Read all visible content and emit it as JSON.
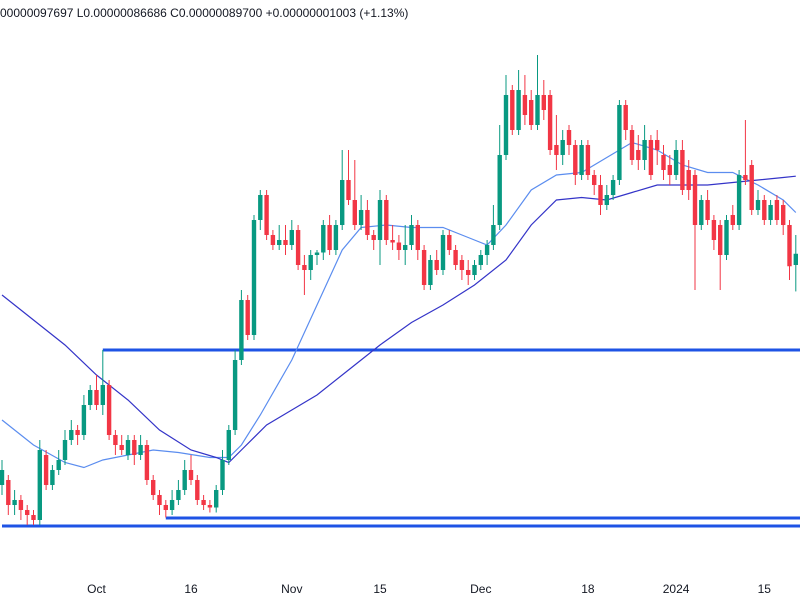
{
  "chart_data": {
    "type": "candlestick",
    "header": "00000097697 L0.00000086686 C0.00000089700 +0.00000001003 (+1.13%)",
    "up_color": "#089981",
    "down_color": "#f23645",
    "ylim": [
      6.44e-07,
      1.1e-06
    ],
    "categories": [
      null,
      null,
      null,
      null,
      null,
      null,
      null,
      null,
      null,
      null,
      null,
      null,
      null,
      null,
      null,
      "Oct",
      null,
      null,
      null,
      null,
      null,
      null,
      null,
      null,
      null,
      null,
      null,
      null,
      null,
      null,
      "16",
      null,
      null,
      null,
      null,
      null,
      null,
      null,
      null,
      null,
      null,
      null,
      null,
      null,
      null,
      null,
      "Nov",
      null,
      null,
      null,
      null,
      null,
      null,
      null,
      null,
      null,
      null,
      null,
      null,
      null,
      "15",
      null,
      null,
      null,
      null,
      null,
      null,
      null,
      null,
      null,
      null,
      null,
      null,
      null,
      null,
      null,
      "Dec",
      null,
      null,
      null,
      null,
      null,
      null,
      null,
      null,
      null,
      null,
      null,
      null,
      null,
      null,
      null,
      null,
      "18",
      null,
      null,
      null,
      null,
      null,
      null,
      null,
      null,
      null,
      null,
      null,
      null,
      null,
      "2024",
      null,
      null,
      null,
      null,
      null,
      null,
      null,
      null,
      null,
      null,
      null,
      null,
      null,
      "15",
      null,
      null,
      null,
      null,
      null
    ],
    "open": [
      7.12e-07,
      7.16e-07,
      6.96e-07,
      7e-07,
      6.92e-07,
      6.88e-07,
      6.84e-07,
      7.36e-07,
      7.12e-07,
      7.24e-07,
      7.32e-07,
      7.48e-07,
      7.56e-07,
      7.52e-07,
      7.76e-07,
      7.88e-07,
      7.76e-07,
      7.92e-07,
      7.52e-07,
      7.44e-07,
      7.36e-07,
      7.48e-07,
      7.36e-07,
      7.44e-07,
      7.16e-07,
      7.04e-07,
      6.96e-07,
      6.92e-07,
      7e-07,
      7.08e-07,
      7.24e-07,
      7.16e-07,
      7e-07,
      6.96e-07,
      6.94e-07,
      7.08e-07,
      7.32e-07,
      7.56e-07,
      8.12e-07,
      8.6e-07,
      8.32e-07,
      9.24e-07,
      9.44e-07,
      9.12e-07,
      9.04e-07,
      9.08e-07,
      9.04e-07,
      9.16e-07,
      8.88e-07,
      8.84e-07,
      8.96e-07,
      8.98e-07,
      9.2e-07,
      9e-07,
      9.2e-07,
      9.56e-07,
      9.4e-07,
      9.2e-07,
      9.32e-07,
      9.12e-07,
      9.08e-07,
      9.4e-07,
      9.08e-07,
      9.06e-07,
      9e-07,
      9.04e-07,
      9.2e-07,
      9e-07,
      8.72e-07,
      8.92e-07,
      8.84e-07,
      9.12e-07,
      9e-07,
      8.92e-07,
      8.84e-07,
      8.8e-07,
      8.88e-07,
      8.96e-07,
      9.04e-07,
      9.2e-07,
      9.76e-07,
      1.028e-06,
      9.96e-07,
      1.024e-06,
      1.02e-06,
      1e-06,
      1.024e-06,
      1.024e-06,
      9.84e-07,
      9.76e-07,
      9.96e-07,
      9.84e-07,
      9.6e-07,
      9.84e-07,
      9.6e-07,
      9.52e-07,
      9.36e-07,
      9.44e-07,
      9.56e-07,
      1.016e-06,
      9.96e-07,
      9.8e-07,
      9.72e-07,
      9.88e-07,
      9.88e-07,
      9.76e-07,
      9.68e-07,
      9.6e-07,
      9.8e-07,
      9.64e-07,
      9.6e-07,
      9.2e-07,
      9.4e-07,
      9.24e-07,
      9.2e-07,
      8.96e-07,
      9.28e-07,
      9.2e-07,
      9.6e-07,
      9.68e-07,
      9.32e-07,
      9.4e-07,
      9.24e-07,
      9.4e-07,
      9.36e-07,
      9.2e-07,
      8.88e-07
    ],
    "high": [
      7.32e-07,
      7.2e-07,
      7.08e-07,
      7.04e-07,
      6.96e-07,
      6.92e-07,
      7.48e-07,
      7.4e-07,
      7.28e-07,
      7.4e-07,
      7.56e-07,
      7.64e-07,
      7.6e-07,
      7.84e-07,
      7.92e-07,
      8e-07,
      8.2e-07,
      7.96e-07,
      7.56e-07,
      7.52e-07,
      7.52e-07,
      7.52e-07,
      7.52e-07,
      7.48e-07,
      7.2e-07,
      7.08e-07,
      7e-07,
      7.08e-07,
      7.16e-07,
      7.32e-07,
      7.36e-07,
      7.2e-07,
      7.04e-07,
      7e-07,
      7.12e-07,
      7.4e-07,
      7.6e-07,
      8.2e-07,
      8.68e-07,
      8.64e-07,
      9.28e-07,
      9.48e-07,
      9.48e-07,
      9.16e-07,
      9.2e-07,
      9.2e-07,
      9.24e-07,
      9.2e-07,
      8.96e-07,
      9e-07,
      9e-07,
      9.24e-07,
      9.28e-07,
      9.24e-07,
      9.8e-07,
      9.8e-07,
      9.72e-07,
      9.44e-07,
      9.4e-07,
      9.16e-07,
      9.48e-07,
      9.44e-07,
      9.2e-07,
      9.12e-07,
      9.2e-07,
      9.28e-07,
      9.24e-07,
      9.04e-07,
      8.96e-07,
      9e-07,
      9.16e-07,
      9.16e-07,
      9.04e-07,
      8.96e-07,
      8.92e-07,
      8.92e-07,
      9e-07,
      9.08e-07,
      9.36e-07,
      1e-06,
      1.04e-06,
      1.032e-06,
      1.044e-06,
      1.04e-06,
      1.028e-06,
      1.056e-06,
      1.036e-06,
      1.028e-06,
      1.008e-06,
      9.96e-07,
      1e-06,
      9.88e-07,
      9.88e-07,
      9.88e-07,
      9.64e-07,
      9.6e-07,
      9.52e-07,
      9.6e-07,
      1.02e-06,
      1.02e-06,
      1e-06,
      9.92e-07,
      1e-06,
      9.92e-07,
      9.96e-07,
      9.84e-07,
      9.76e-07,
      9.88e-07,
      9.88e-07,
      9.72e-07,
      9.64e-07,
      9.44e-07,
      9.48e-07,
      9.28e-07,
      9.24e-07,
      9.28e-07,
      9.36e-07,
      9.64e-07,
      1.004e-06,
      9.72e-07,
      9.48e-07,
      9.44e-07,
      9.4e-07,
      9.44e-07,
      9.4e-07,
      9.24e-07,
      9.12e-07
    ],
    "low": [
      7.04e-07,
      6.88e-07,
      6.88e-07,
      6.84e-07,
      6.8e-07,
      6.8e-07,
      6.8e-07,
      7.08e-07,
      7.08e-07,
      7.2e-07,
      7.28e-07,
      7.44e-07,
      7.44e-07,
      7.48e-07,
      7.72e-07,
      7.72e-07,
      7.68e-07,
      7.48e-07,
      7.36e-07,
      7.36e-07,
      7.32e-07,
      7.28e-07,
      7.32e-07,
      7.12e-07,
      7e-07,
      6.88e-07,
      6.86e-07,
      6.88e-07,
      6.96e-07,
      7.04e-07,
      7.12e-07,
      6.96e-07,
      6.92e-07,
      6.9e-07,
      6.9e-07,
      7.04e-07,
      7.28e-07,
      7.52e-07,
      8.08e-07,
      8.28e-07,
      8.28e-07,
      9.16e-07,
      9.08e-07,
      9e-07,
      9e-07,
      8.96e-07,
      9e-07,
      8.84e-07,
      8.64e-07,
      8.76e-07,
      8.88e-07,
      8.92e-07,
      8.96e-07,
      8.96e-07,
      9.16e-07,
      9.36e-07,
      9.16e-07,
      9.16e-07,
      9.08e-07,
      9e-07,
      8.88e-07,
      9.04e-07,
      9e-07,
      8.92e-07,
      8.88e-07,
      9e-07,
      8.92e-07,
      8.68e-07,
      8.68e-07,
      8.8e-07,
      8.8e-07,
      8.96e-07,
      8.84e-07,
      8.76e-07,
      8.72e-07,
      8.76e-07,
      8.84e-07,
      8.88e-07,
      9e-07,
      9.16e-07,
      9.72e-07,
      9.92e-07,
      9.92e-07,
      1e-06,
      9.96e-07,
      9.96e-07,
      1.004e-06,
      9.76e-07,
      9.64e-07,
      9.68e-07,
      9.76e-07,
      9.52e-07,
      9.56e-07,
      9.56e-07,
      9.44e-07,
      9.28e-07,
      9.32e-07,
      9.4e-07,
      9.52e-07,
      9.88e-07,
      9.68e-07,
      9.64e-07,
      9.64e-07,
      9.56e-07,
      9.68e-07,
      9.56e-07,
      9.52e-07,
      9.56e-07,
      9.44e-07,
      9.4e-07,
      8.68e-07,
      9.16e-07,
      9.2e-07,
      9e-07,
      8.68e-07,
      8.92e-07,
      9.16e-07,
      9.16e-07,
      9.52e-07,
      9.28e-07,
      9.28e-07,
      9.2e-07,
      9.2e-07,
      9.2e-07,
      9.12e-07,
      8.76e-07,
      8.6686e-07
    ],
    "close": [
      7.24e-07,
      6.96e-07,
      7e-07,
      6.92e-07,
      6.88e-07,
      6.84e-07,
      7.4e-07,
      7.12e-07,
      7.24e-07,
      7.32e-07,
      7.48e-07,
      7.56e-07,
      7.52e-07,
      7.76e-07,
      7.88e-07,
      7.76e-07,
      7.92e-07,
      7.52e-07,
      7.44e-07,
      7.4e-07,
      7.48e-07,
      7.36e-07,
      7.44e-07,
      7.16e-07,
      7.04e-07,
      6.96e-07,
      6.92e-07,
      7e-07,
      7.08e-07,
      7.24e-07,
      7.16e-07,
      7e-07,
      6.96e-07,
      6.94e-07,
      7.08e-07,
      7.32e-07,
      7.56e-07,
      8.12e-07,
      8.6e-07,
      8.32e-07,
      9.24e-07,
      9.44e-07,
      9.12e-07,
      9.04e-07,
      9.08e-07,
      9.04e-07,
      9.16e-07,
      8.88e-07,
      8.84e-07,
      8.96e-07,
      8.98e-07,
      9.2e-07,
      9e-07,
      9.2e-07,
      9.56e-07,
      9.4e-07,
      9.2e-07,
      9.32e-07,
      9.12e-07,
      9.08e-07,
      9.4e-07,
      9.08e-07,
      9.06e-07,
      9e-07,
      9.04e-07,
      9.2e-07,
      9e-07,
      8.72e-07,
      8.92e-07,
      8.84e-07,
      9.12e-07,
      9e-07,
      8.88e-07,
      8.84e-07,
      8.8e-07,
      8.88e-07,
      8.96e-07,
      9.04e-07,
      9.2e-07,
      9.76e-07,
      1.024e-06,
      9.96e-07,
      1.028e-06,
      1.008e-06,
      1e-06,
      1.024e-06,
      1.012e-06,
      9.8e-07,
      9.76e-07,
      9.88e-07,
      9.84e-07,
      9.6e-07,
      9.84e-07,
      9.6e-07,
      9.52e-07,
      9.36e-07,
      9.44e-07,
      9.56e-07,
      1.016e-06,
      9.96e-07,
      9.72e-07,
      9.72e-07,
      9.88e-07,
      9.6e-07,
      9.8e-07,
      9.64e-07,
      9.6e-07,
      9.8e-07,
      9.48e-07,
      9.48e-07,
      9.2e-07,
      9.4e-07,
      9.24e-07,
      9.08e-07,
      8.96e-07,
      9.24e-07,
      9.2e-07,
      9.6e-07,
      9.56e-07,
      9.32e-07,
      9.4e-07,
      9.24e-07,
      9.36e-07,
      9.24e-07,
      9.2e-07,
      8.87e-07,
      8.97e-07
    ],
    "lines": [
      {
        "color": "#5b8def",
        "x": [
          0,
          5,
          10,
          13,
          16,
          20,
          24,
          28,
          33,
          36,
          38,
          41,
          46,
          50,
          54,
          57,
          61,
          65,
          70,
          74,
          77,
          80,
          84,
          88,
          92,
          96,
          100,
          104,
          108,
          112,
          116,
          120,
          124,
          126
        ],
        "values": [
          7.64e-07,
          7.44e-07,
          7.3e-07,
          7.26e-07,
          7.32e-07,
          7.36e-07,
          7.4e-07,
          7.38e-07,
          7.34e-07,
          7.34e-07,
          7.44e-07,
          7.68e-07,
          8.12e-07,
          8.56e-07,
          9e-07,
          9.18e-07,
          9.2e-07,
          9.18e-07,
          9.18e-07,
          9.1e-07,
          9.04e-07,
          9.2e-07,
          9.48e-07,
          9.6e-07,
          9.62e-07,
          9.74e-07,
          9.86e-07,
          9.8e-07,
          9.68e-07,
          9.62e-07,
          9.62e-07,
          9.52e-07,
          9.4e-07,
          9.3e-07
        ]
      },
      {
        "color": "#3434c8",
        "x": [
          0,
          5,
          10,
          15,
          20,
          25,
          30,
          34,
          36,
          38,
          42,
          46,
          50,
          55,
          60,
          65,
          70,
          75,
          80,
          84,
          88,
          92,
          96,
          100,
          104,
          108,
          112,
          116,
          120,
          124,
          126
        ],
        "values": [
          8.64e-07,
          8.44e-07,
          8.24e-07,
          8e-07,
          7.8e-07,
          7.56e-07,
          7.4e-07,
          7.34e-07,
          7.3e-07,
          7.4e-07,
          7.6e-07,
          7.72e-07,
          7.84e-07,
          8.04e-07,
          8.24e-07,
          8.42e-07,
          8.56e-07,
          8.72e-07,
          8.92e-07,
          9.2e-07,
          9.4e-07,
          9.42e-07,
          9.4e-07,
          9.46e-07,
          9.52e-07,
          9.52e-07,
          9.52e-07,
          9.54e-07,
          9.56e-07,
          9.58e-07,
          9.59e-07
        ]
      }
    ],
    "levels": [
      {
        "value": 8.2e-07,
        "x": 16,
        "color": "#1e53e5"
      },
      {
        "value": 6.856e-07,
        "x": 26,
        "color": "#1e53e5"
      },
      {
        "value": 6.792e-07,
        "x": 0,
        "color": "#1e53e5"
      }
    ]
  }
}
